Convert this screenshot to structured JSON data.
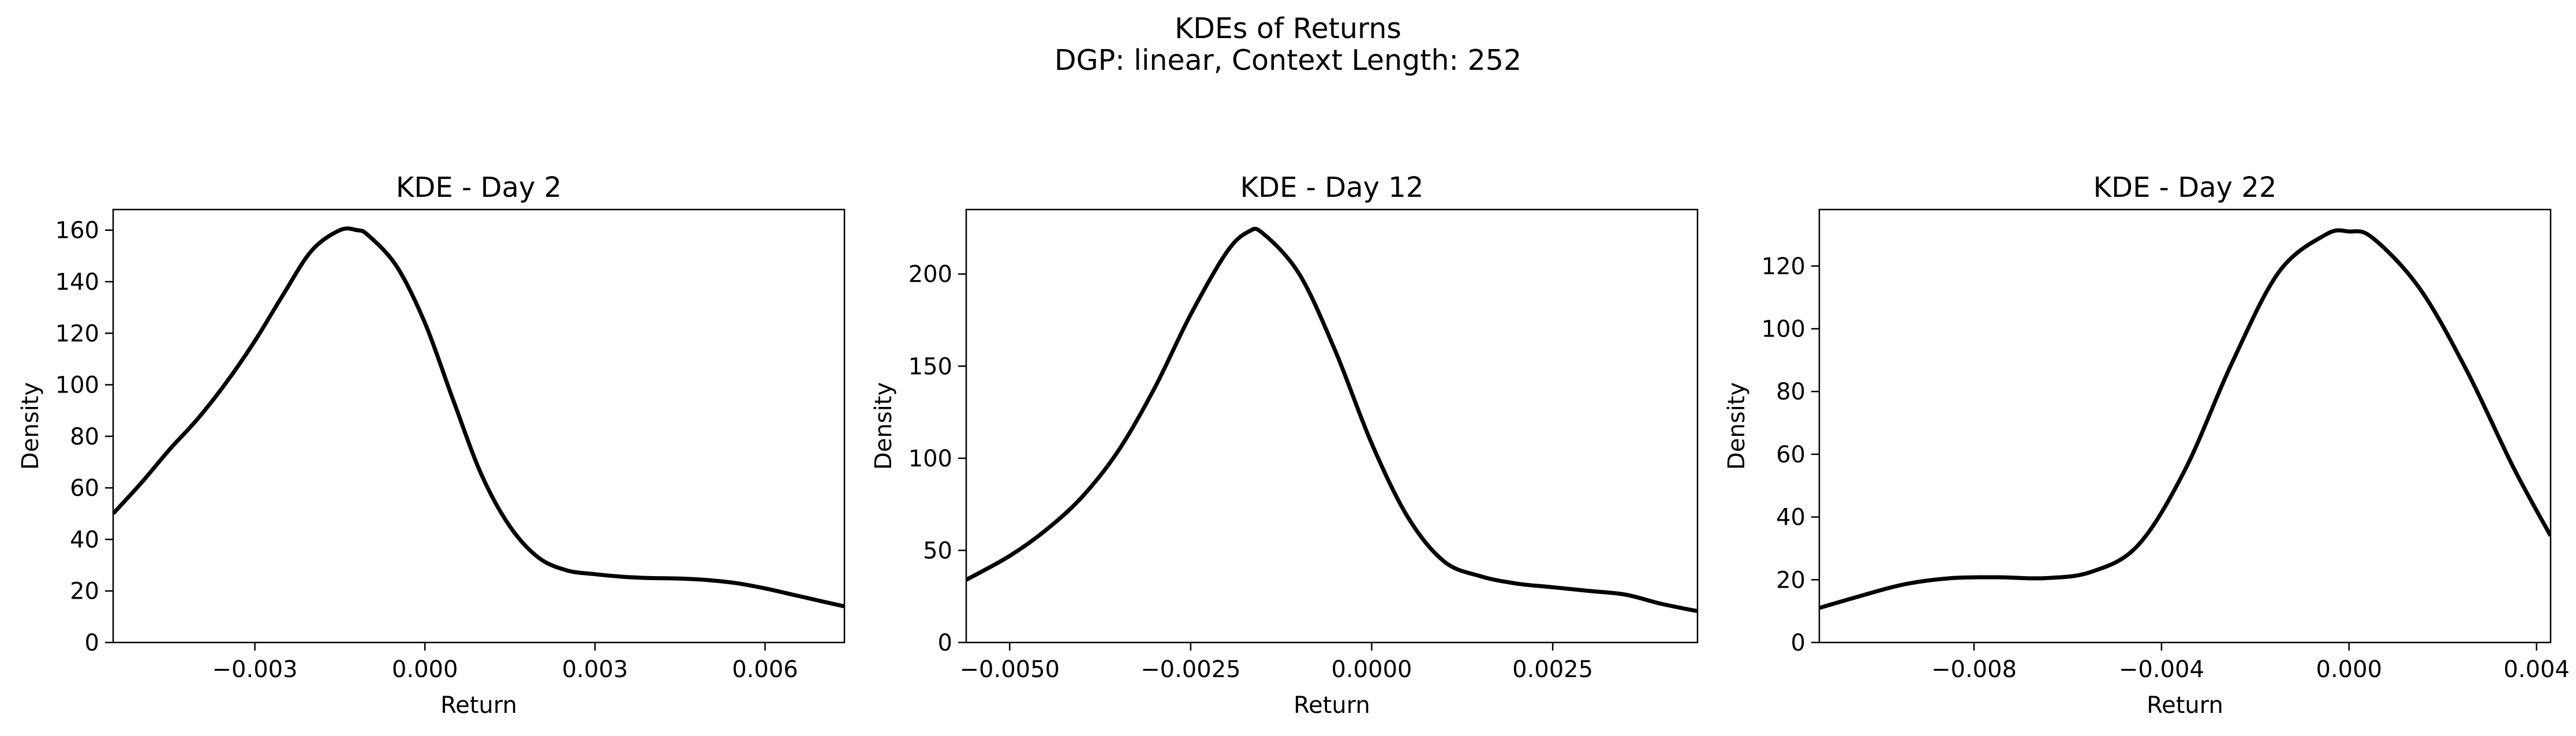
{
  "figure": {
    "suptitle_line1": "KDEs of Returns",
    "suptitle_line2": "DGP: linear, Context Length: 252"
  },
  "chart_data": [
    {
      "type": "line",
      "title": "KDE - Day 2",
      "xlabel": "Return",
      "ylabel": "Density",
      "xlim": [
        -0.0055,
        0.0074
      ],
      "ylim": [
        0,
        168
      ],
      "xticks": [
        -0.003,
        0.0,
        0.003,
        0.006
      ],
      "xtick_labels": [
        "−0.003",
        "0.000",
        "0.003",
        "0.006"
      ],
      "yticks": [
        0,
        20,
        40,
        60,
        80,
        100,
        120,
        140,
        160
      ],
      "ytick_labels": [
        "0",
        "20",
        "40",
        "60",
        "80",
        "100",
        "120",
        "140",
        "160"
      ],
      "grid": false,
      "color": "#000000",
      "x": [
        -0.0055,
        -0.005,
        -0.0045,
        -0.004,
        -0.0035,
        -0.003,
        -0.0025,
        -0.002,
        -0.0015,
        -0.0012,
        -0.001,
        -0.0005,
        0.0,
        0.0005,
        0.001,
        0.0015,
        0.002,
        0.0025,
        0.003,
        0.0035,
        0.004,
        0.0045,
        0.005,
        0.0055,
        0.006,
        0.0065,
        0.007,
        0.0074
      ],
      "y": [
        50,
        62,
        75,
        87,
        101,
        117,
        135,
        152,
        160,
        160,
        158,
        146,
        124,
        94,
        65,
        45,
        33,
        28,
        26.5,
        25.5,
        25,
        24.8,
        24.2,
        23,
        21,
        18.5,
        16,
        14
      ]
    },
    {
      "type": "line",
      "title": "KDE - Day 12",
      "xlabel": "Return",
      "ylabel": "Density",
      "xlim": [
        -0.0056,
        0.0045
      ],
      "ylim": [
        0,
        235
      ],
      "xticks": [
        -0.005,
        -0.0025,
        0.0,
        0.0025
      ],
      "xtick_labels": [
        "−0.0050",
        "−0.0025",
        "0.0000",
        "0.0025"
      ],
      "yticks": [
        0,
        50,
        100,
        150,
        200
      ],
      "ytick_labels": [
        "0",
        "50",
        "100",
        "150",
        "200"
      ],
      "grid": false,
      "color": "#000000",
      "x": [
        -0.0056,
        -0.005,
        -0.0045,
        -0.004,
        -0.0035,
        -0.003,
        -0.0025,
        -0.002,
        -0.0017,
        -0.0015,
        -0.001,
        -0.0005,
        0.0,
        0.0005,
        0.001,
        0.0015,
        0.002,
        0.0025,
        0.003,
        0.0035,
        0.004,
        0.0045
      ],
      "y": [
        34,
        47,
        61,
        79,
        104,
        138,
        178,
        212,
        223,
        222,
        200,
        158,
        108,
        68,
        44,
        36,
        32,
        30,
        28,
        26,
        21,
        17
      ]
    },
    {
      "type": "line",
      "title": "KDE - Day 22",
      "xlabel": "Return",
      "ylabel": "Density",
      "xlim": [
        -0.0113,
        0.0043
      ],
      "ylim": [
        0,
        138
      ],
      "xticks": [
        -0.008,
        -0.004,
        0.0,
        0.004
      ],
      "xtick_labels": [
        "−0.008",
        "−0.004",
        "0.000",
        "0.004"
      ],
      "yticks": [
        0,
        20,
        40,
        60,
        80,
        100,
        120
      ],
      "ytick_labels": [
        "0",
        "20",
        "40",
        "60",
        "80",
        "100",
        "120"
      ],
      "grid": false,
      "color": "#000000",
      "x": [
        -0.0113,
        -0.0105,
        -0.0095,
        -0.0085,
        -0.0075,
        -0.0065,
        -0.0055,
        -0.0045,
        -0.0035,
        -0.0025,
        -0.0015,
        -0.0005,
        0.0,
        0.0005,
        0.0015,
        0.0025,
        0.0035,
        0.0043
      ],
      "y": [
        11,
        14.5,
        18.5,
        20.5,
        20.8,
        20.5,
        22.5,
        31,
        55,
        89,
        118,
        130,
        131,
        129,
        113,
        87,
        56,
        34
      ]
    }
  ]
}
